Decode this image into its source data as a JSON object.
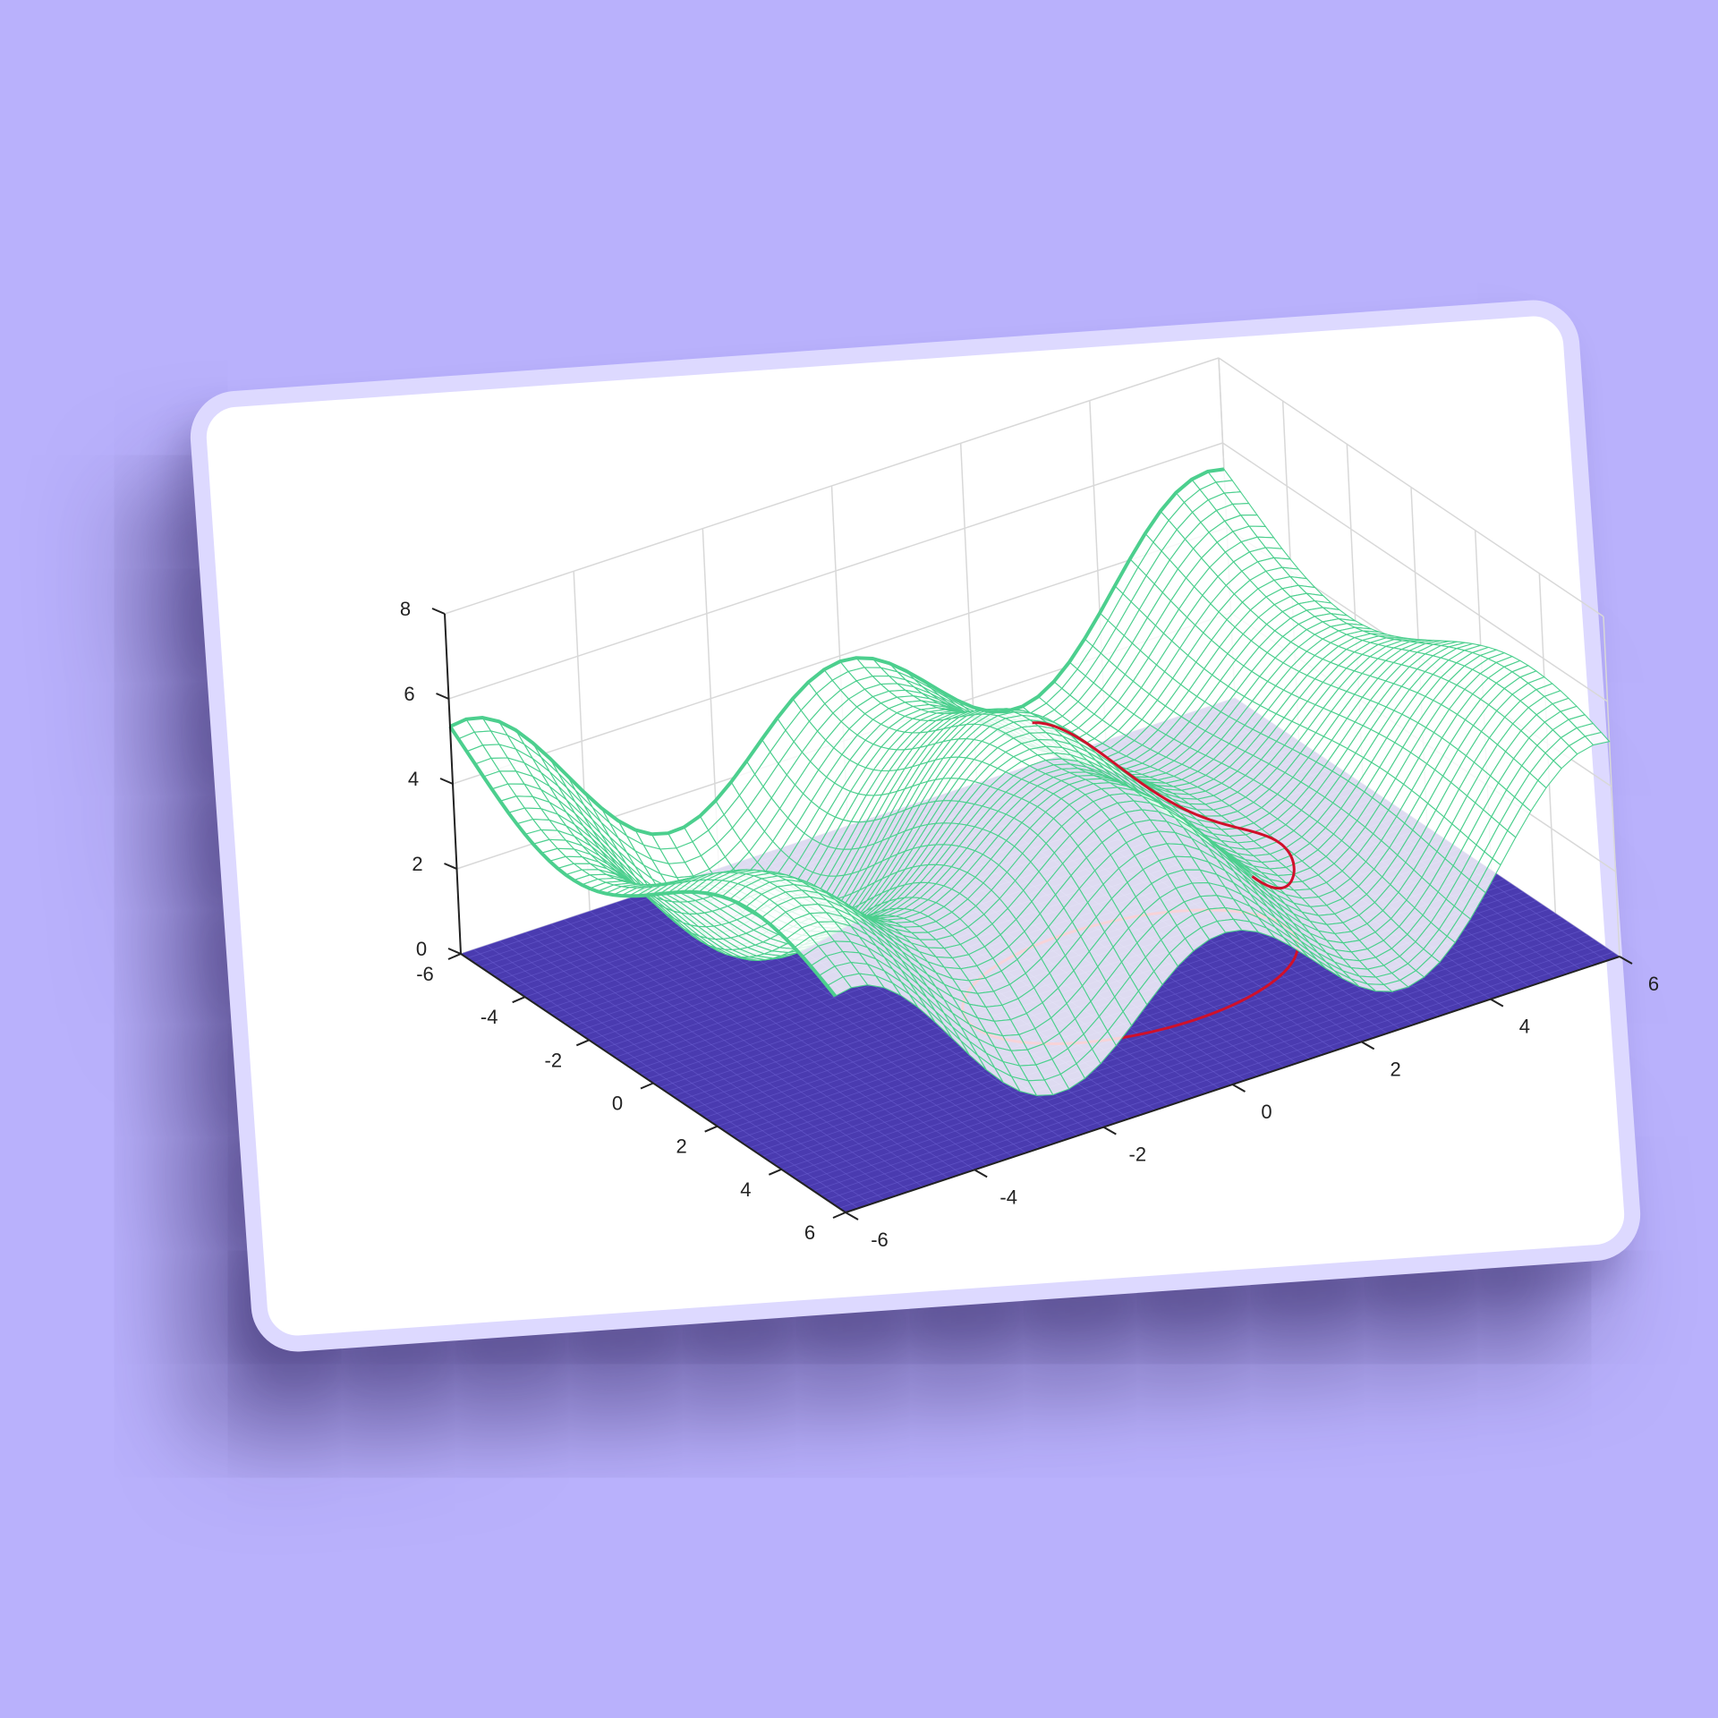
{
  "colors": {
    "background": "#b9b1fc",
    "card": "#ffffff",
    "card_border": "#ddd9ff",
    "surface": "#4ccf8e",
    "floor": "#4a3bb0",
    "curve": "#d0102a",
    "grid": "#d8d8d8",
    "axis": "#222222"
  },
  "chart_data": {
    "type": "surface3d",
    "title": "",
    "xlabel": "",
    "ylabel": "",
    "zlabel": "",
    "xlim": [
      -6,
      6
    ],
    "ylim": [
      -6,
      6
    ],
    "zlim": [
      0,
      8
    ],
    "x_ticks": [
      "-6",
      "-4",
      "-2",
      "0",
      "2",
      "4",
      "6"
    ],
    "y_ticks": [
      "-6",
      "-4",
      "-2",
      "0",
      "2",
      "4",
      "6"
    ],
    "z_ticks": [
      "0",
      "2",
      "4",
      "6",
      "8"
    ],
    "grid": true,
    "series": [
      {
        "name": "surface",
        "kind": "mesh",
        "description": "green wavy mesh surface with ridges and troughs"
      },
      {
        "name": "floor",
        "kind": "mesh",
        "z": 0
      },
      {
        "name": "curve",
        "kind": "line3d",
        "description": "red ellipse on floor and its lift onto the surface"
      }
    ]
  }
}
